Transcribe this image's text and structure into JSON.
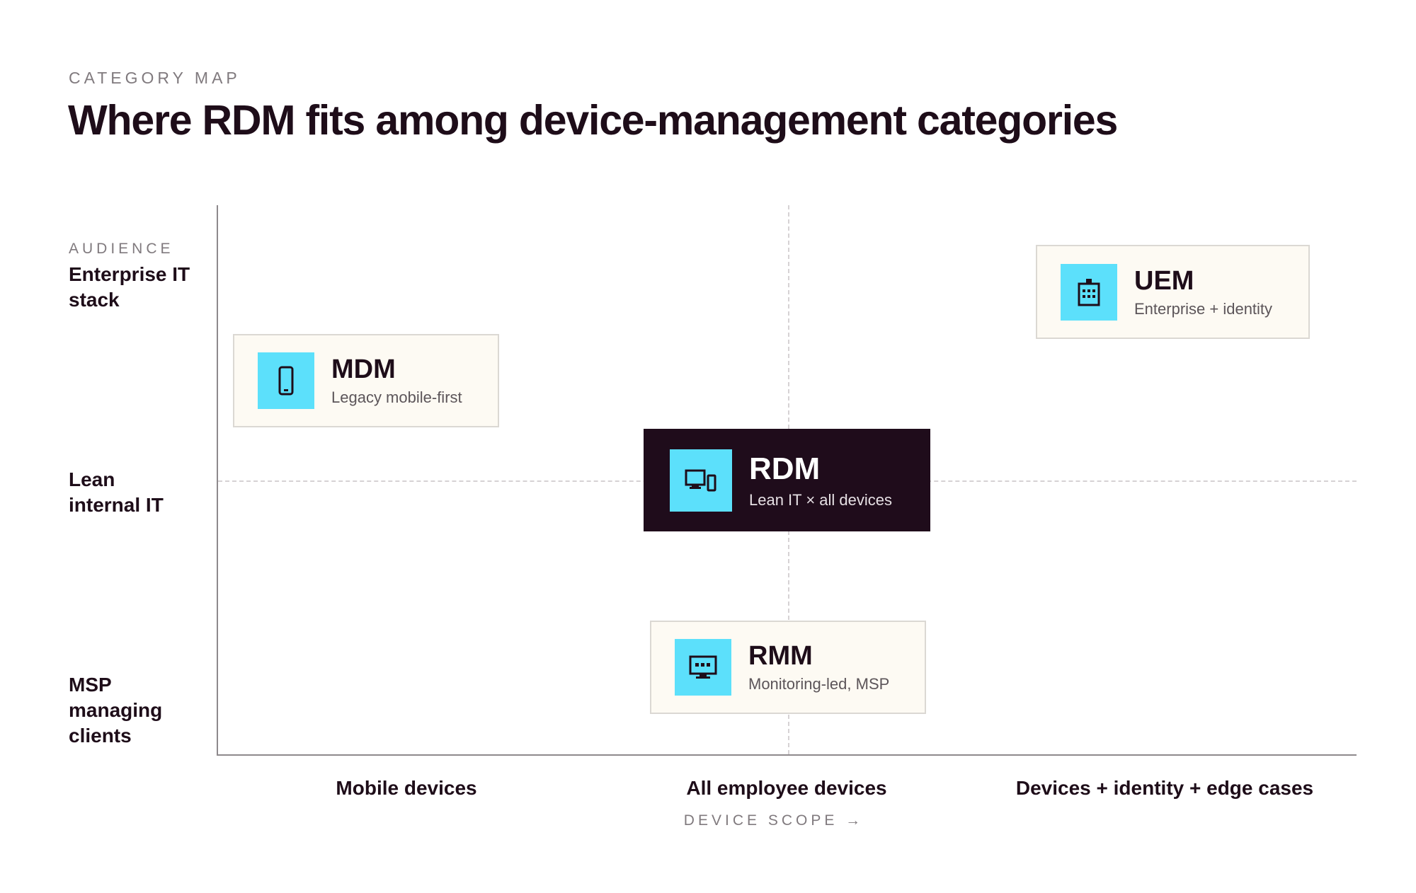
{
  "header": {
    "eyebrow": "CATEGORY MAP",
    "title": "Where RDM fits among device-management categories"
  },
  "y_axis": {
    "title": "AUDIENCE",
    "levels": [
      {
        "label": "Enterprise IT stack"
      },
      {
        "label": "Lean internal IT"
      },
      {
        "label": "MSP managing clients"
      }
    ]
  },
  "x_axis": {
    "title": "DEVICE SCOPE →",
    "levels": [
      "Mobile devices",
      "All employee devices",
      "Devices + identity + edge cases"
    ]
  },
  "categories": [
    {
      "name": "MDM",
      "description": "Legacy mobile-first",
      "icon": "phone-icon",
      "x_level": "Mobile devices",
      "y_level": "between Enterprise IT stack and Lean internal IT"
    },
    {
      "name": "UEM",
      "description": "Enterprise + identity",
      "icon": "building-icon",
      "x_level": "Devices + identity + edge cases",
      "y_level": "Enterprise IT stack"
    },
    {
      "name": "RDM",
      "description": "Lean IT × all devices",
      "icon": "devices-icon",
      "x_level": "All employee devices",
      "y_level": "Lean internal IT",
      "highlighted": true
    },
    {
      "name": "RMM",
      "description": "Monitoring-led, MSP",
      "icon": "monitor-icon",
      "x_level": "All employee devices",
      "y_level": "MSP managing clients"
    }
  ],
  "colors": {
    "ink": "#1e0d19",
    "icon_tile": "#5ce0fb",
    "card_bg": "#fdfaf3",
    "highlight_bg": "#1f0c1b",
    "muted": "#807a7e"
  }
}
